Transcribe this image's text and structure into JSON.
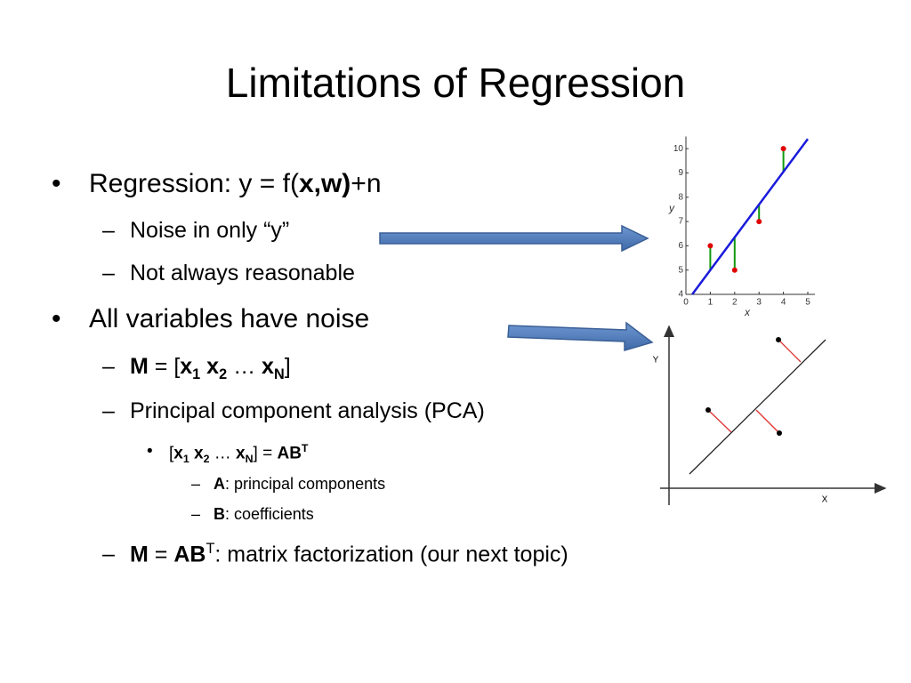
{
  "title": "Limitations of Regression",
  "bullets": [
    {
      "level": 1,
      "marker": "•",
      "runs": [
        {
          "text": "Regression: y = f("
        },
        {
          "text": "x,w)",
          "style": "b"
        },
        {
          "text": "+n"
        }
      ]
    },
    {
      "level": 2,
      "marker": "–",
      "runs": [
        {
          "text": "Noise in only “y”"
        }
      ]
    },
    {
      "level": 2,
      "marker": "–",
      "runs": [
        {
          "text": "Not always reasonable"
        }
      ]
    },
    {
      "level": 1,
      "marker": "•",
      "runs": [
        {
          "text": "All variables have noise"
        }
      ]
    },
    {
      "level": 2,
      "marker": "–",
      "runs": [
        {
          "text": "M",
          "style": "b"
        },
        {
          "text": " = ["
        },
        {
          "text": "x",
          "style": "b"
        },
        {
          "text": "1",
          "style": "b sub"
        },
        {
          "text": " x",
          "style": "b"
        },
        {
          "text": "2",
          "style": "b sub"
        },
        {
          "text": " … "
        },
        {
          "text": "x",
          "style": "b"
        },
        {
          "text": "N",
          "style": "b sub"
        },
        {
          "text": "]"
        }
      ]
    },
    {
      "level": 2,
      "marker": "–",
      "runs": [
        {
          "text": "Principal component analysis (PCA)"
        }
      ]
    },
    {
      "level": 3,
      "marker": "•",
      "runs": [
        {
          "text": "["
        },
        {
          "text": "x",
          "style": "b"
        },
        {
          "text": "1",
          "style": "b sub"
        },
        {
          "text": " x",
          "style": "b"
        },
        {
          "text": "2",
          "style": "b sub"
        },
        {
          "text": " … "
        },
        {
          "text": "x",
          "style": "b"
        },
        {
          "text": "N",
          "style": "b sub"
        },
        {
          "text": "] = "
        },
        {
          "text": "AB",
          "style": "b"
        },
        {
          "text": "T",
          "style": "b sup"
        }
      ]
    },
    {
      "level": 4,
      "marker": "–",
      "runs": [
        {
          "text": "A",
          "style": "b"
        },
        {
          "text": ": principal components"
        }
      ]
    },
    {
      "level": 4,
      "marker": "–",
      "runs": [
        {
          "text": "B",
          "style": "b"
        },
        {
          "text": ": coefficients"
        }
      ]
    },
    {
      "level": 2,
      "marker": "–",
      "runs": [
        {
          "text": "M",
          "style": "b"
        },
        {
          "text": " = "
        },
        {
          "text": "AB",
          "style": "b"
        },
        {
          "text": "T",
          "style": "sup"
        },
        {
          "text": ": matrix factorization (our next topic)"
        }
      ]
    }
  ],
  "figures": {
    "regression": {
      "x_label": "x",
      "y_label": "y",
      "x": [
        1,
        2,
        3,
        4
      ],
      "y": [
        6,
        5,
        7,
        10
      ],
      "fit": {
        "slope": 1.35,
        "intercept": 3.65
      },
      "xlim": [
        0,
        5
      ],
      "ylim": [
        4,
        10.5
      ],
      "xticks": [
        0,
        1,
        2,
        3,
        4,
        5
      ],
      "yticks": [
        4,
        5,
        6,
        7,
        8,
        9,
        10
      ],
      "point_color": "#e00000",
      "residual_color": "#119911",
      "line_color": "#1a1adc"
    },
    "pca": {
      "x_label": "X",
      "y_label": "Y"
    }
  }
}
